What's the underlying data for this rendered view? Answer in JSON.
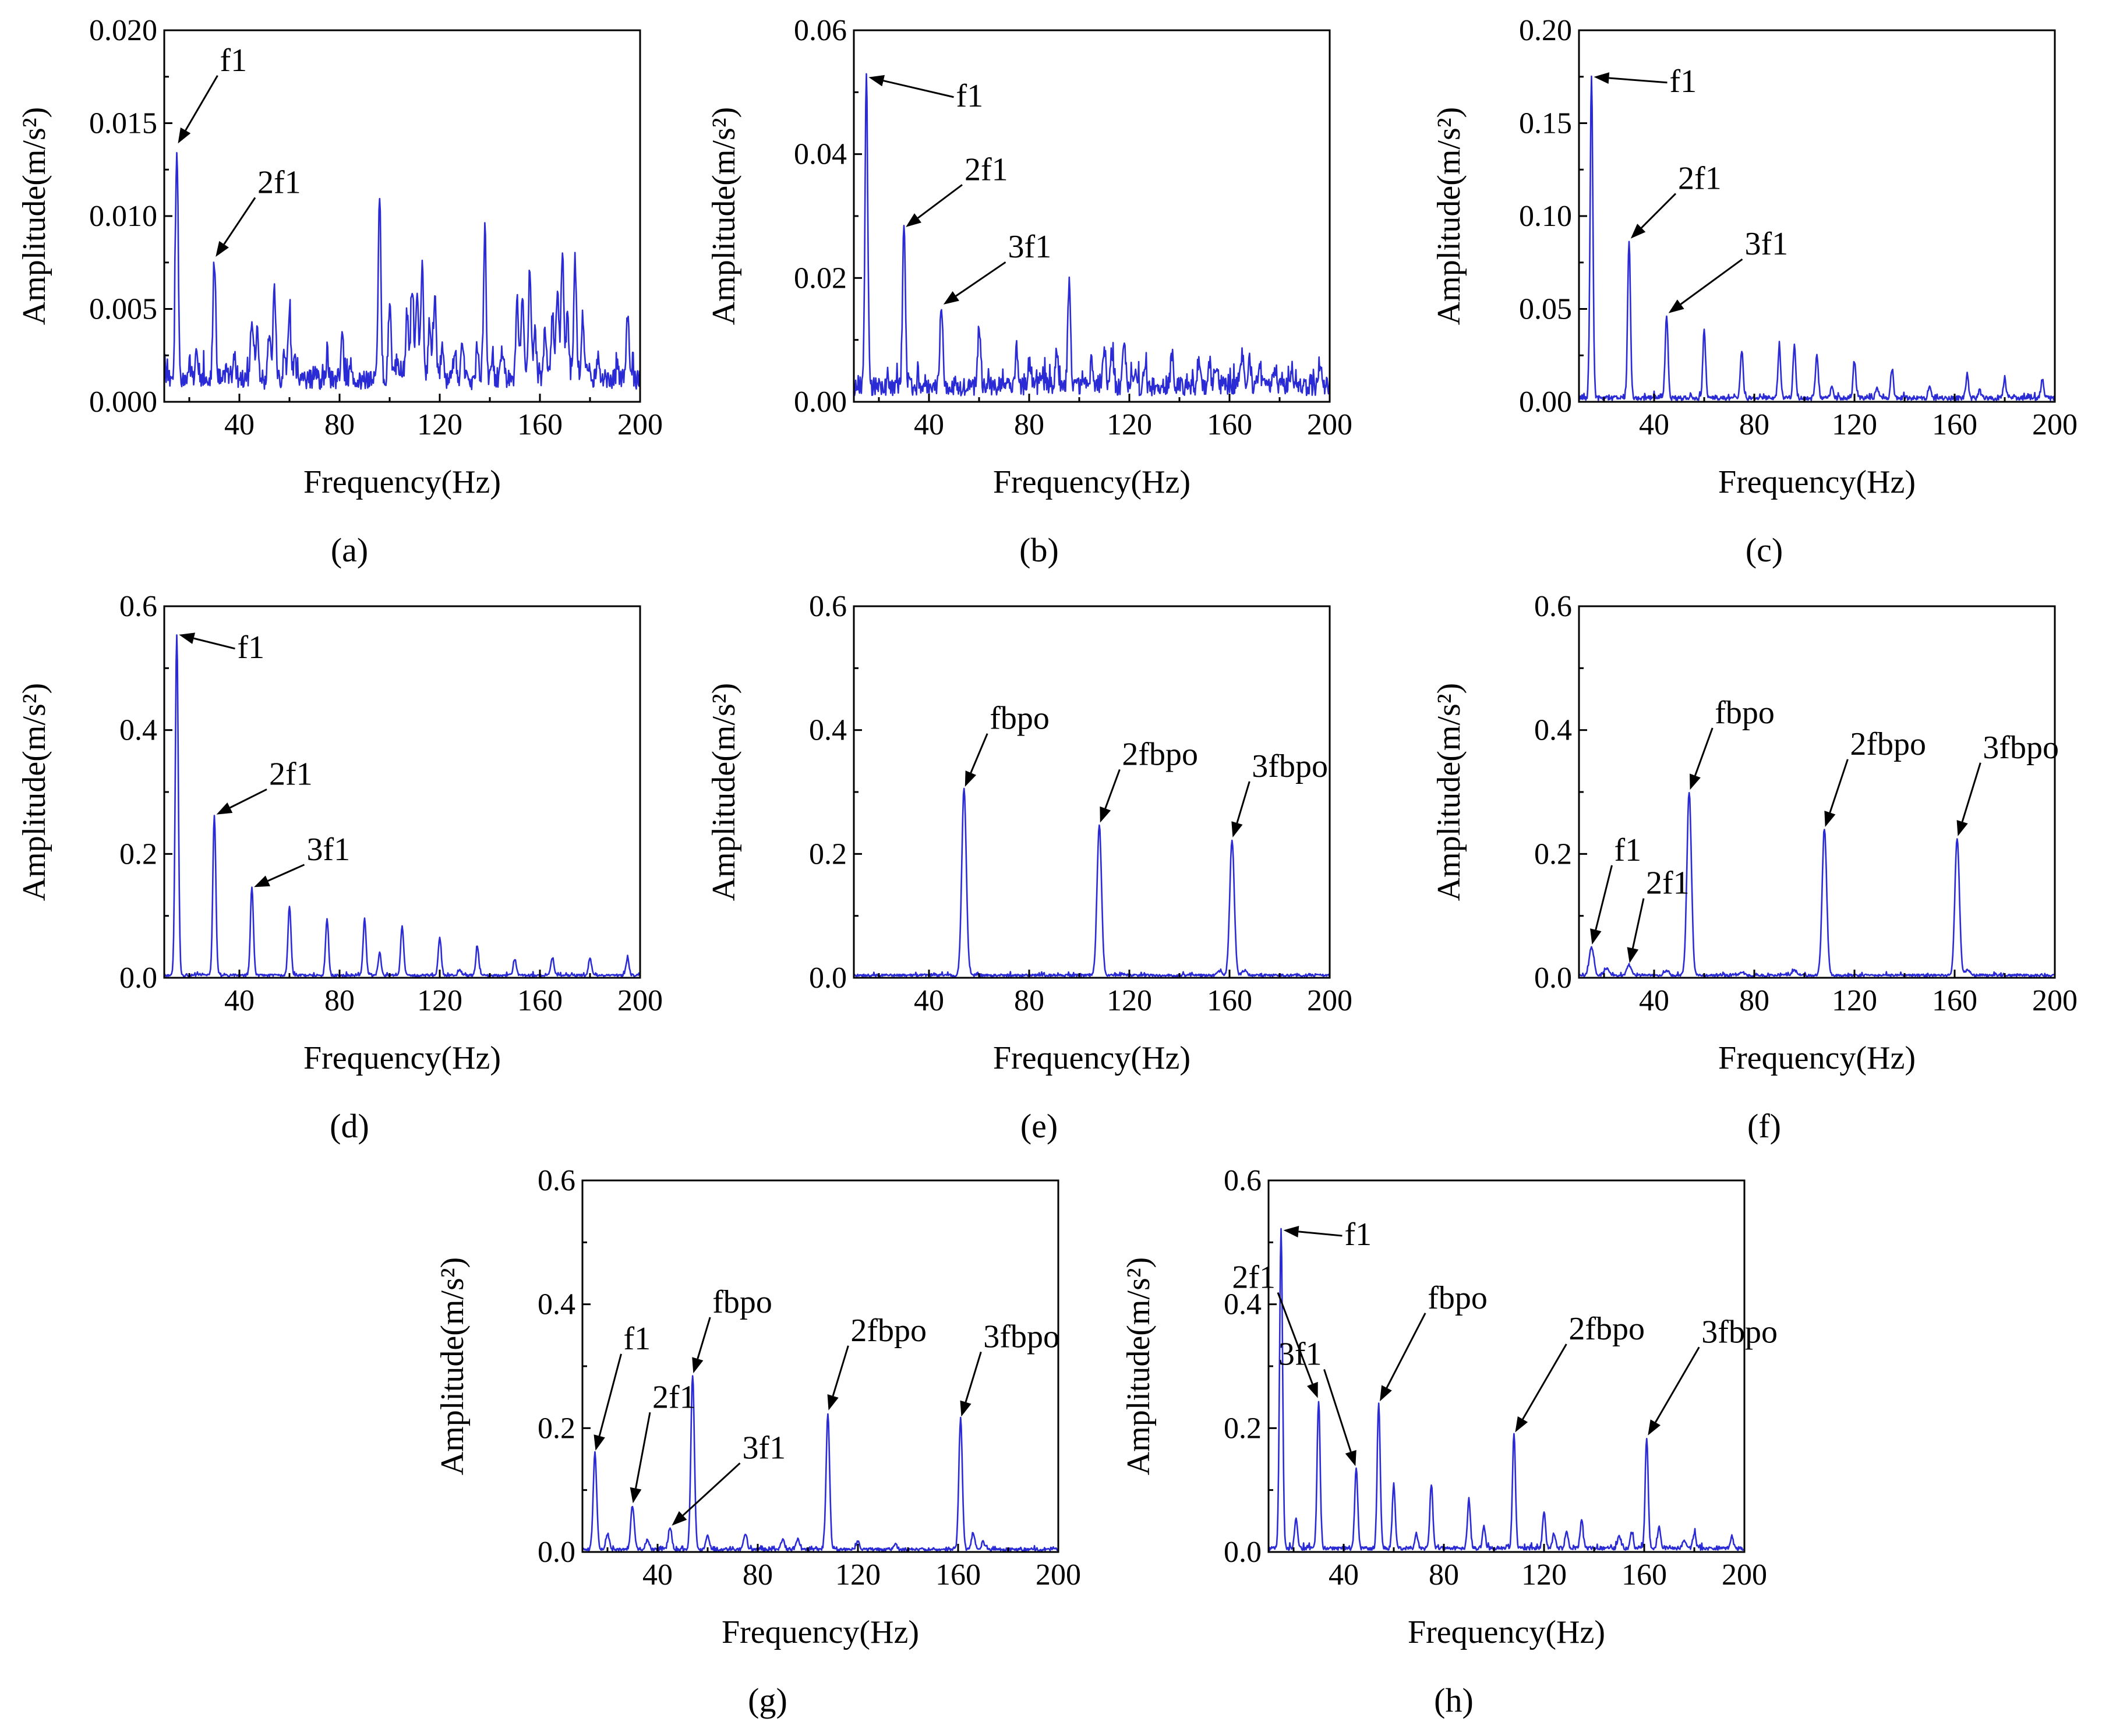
{
  "figure": {
    "panels": [
      {
        "caption": "(a)"
      },
      {
        "caption": "(b)"
      },
      {
        "caption": "(c)"
      },
      {
        "caption": "(d)"
      },
      {
        "caption": "(e)"
      },
      {
        "caption": "(f)"
      },
      {
        "caption": "(g)"
      },
      {
        "caption": "(h)"
      }
    ]
  },
  "colors": {
    "series": "#2b2bd6",
    "axis": "#000000"
  },
  "chart_data": [
    {
      "id": "a",
      "type": "line",
      "caption": "(a)",
      "xlabel": "Frequency(Hz)",
      "ylabel": "Amplitude(m/s²)",
      "xlim": [
        10,
        200
      ],
      "ylim": [
        0,
        0.02
      ],
      "xticks": [
        40,
        80,
        120,
        160,
        200
      ],
      "yticks": [
        0.0,
        0.005,
        0.01,
        0.015,
        0.02
      ],
      "ytick_labels": [
        "0.000",
        "0.005",
        "0.010",
        "0.015",
        "0.020"
      ],
      "baseline": 0.0012,
      "noise": 0.0009,
      "peak_width": 0.55,
      "peaks": [
        [
          15,
          0.0138
        ],
        [
          20,
          0.0021
        ],
        [
          23,
          0.0025
        ],
        [
          30,
          0.0077
        ],
        [
          35,
          0.002
        ],
        [
          38,
          0.0024
        ],
        [
          45,
          0.0044
        ],
        [
          47,
          0.0038
        ],
        [
          52,
          0.004
        ],
        [
          54,
          0.006
        ],
        [
          58,
          0.0024
        ],
        [
          60,
          0.0045
        ],
        [
          62,
          0.0022
        ],
        [
          70,
          0.0015
        ],
        [
          75,
          0.0022
        ],
        [
          81,
          0.0033
        ],
        [
          96,
          0.0109
        ],
        [
          100,
          0.0051
        ],
        [
          103,
          0.0024
        ],
        [
          107,
          0.0049
        ],
        [
          109,
          0.0058
        ],
        [
          111,
          0.0058
        ],
        [
          113,
          0.0073
        ],
        [
          116,
          0.0044
        ],
        [
          118,
          0.0056
        ],
        [
          121,
          0.0027
        ],
        [
          126,
          0.0029
        ],
        [
          129,
          0.0033
        ],
        [
          135,
          0.0028
        ],
        [
          138,
          0.0089
        ],
        [
          141,
          0.0022
        ],
        [
          145,
          0.0027
        ],
        [
          151,
          0.0053
        ],
        [
          153,
          0.0056
        ],
        [
          156,
          0.007
        ],
        [
          158,
          0.0038
        ],
        [
          162,
          0.0038
        ],
        [
          165,
          0.0047
        ],
        [
          167,
          0.0062
        ],
        [
          169,
          0.0083
        ],
        [
          171,
          0.0048
        ],
        [
          174,
          0.0075
        ],
        [
          177,
          0.0044
        ],
        [
          179,
          0.0021
        ],
        [
          183,
          0.0025
        ],
        [
          186,
          0.0015
        ],
        [
          191,
          0.0018
        ],
        [
          195,
          0.0045
        ]
      ],
      "annotations": [
        {
          "text": "f1",
          "x": 15,
          "y": 0.0138
        },
        {
          "text": "2f1",
          "x": 30,
          "y": 0.0077
        }
      ]
    },
    {
      "id": "b",
      "type": "line",
      "caption": "(b)",
      "xlabel": "Frequency(Hz)",
      "ylabel": "Amplitude(m/s²)",
      "xlim": [
        10,
        200
      ],
      "ylim": [
        0,
        0.06
      ],
      "xticks": [
        40,
        80,
        120,
        160,
        200
      ],
      "yticks": [
        0.0,
        0.02,
        0.04,
        0.06
      ],
      "ytick_labels": [
        "0.00",
        "0.02",
        "0.04",
        "0.06"
      ],
      "baseline": 0.0025,
      "noise": 0.0025,
      "peak_width": 0.55,
      "peaks": [
        [
          15,
          0.0525
        ],
        [
          30,
          0.028
        ],
        [
          45,
          0.0155
        ],
        [
          60,
          0.012
        ],
        [
          75,
          0.009
        ],
        [
          80,
          0.006
        ],
        [
          85,
          0.005
        ],
        [
          91,
          0.008
        ],
        [
          96,
          0.0198
        ],
        [
          105,
          0.007
        ],
        [
          110,
          0.009
        ],
        [
          113,
          0.008
        ],
        [
          118,
          0.01
        ],
        [
          122,
          0.005
        ],
        [
          126,
          0.0055
        ],
        [
          137,
          0.008
        ],
        [
          148,
          0.007
        ],
        [
          152,
          0.0065
        ],
        [
          155,
          0.005
        ],
        [
          165,
          0.008
        ],
        [
          168,
          0.007
        ],
        [
          172,
          0.006
        ],
        [
          178,
          0.005
        ],
        [
          184,
          0.004
        ],
        [
          196,
          0.0065
        ]
      ],
      "annotations": [
        {
          "text": "f1",
          "x": 15,
          "y": 0.0525
        },
        {
          "text": "2f1",
          "x": 30,
          "y": 0.028
        },
        {
          "text": "3f1",
          "x": 45,
          "y": 0.0155
        }
      ]
    },
    {
      "id": "c",
      "type": "line",
      "caption": "(c)",
      "xlabel": "Frequency(Hz)",
      "ylabel": "Amplitude(m/s²)",
      "xlim": [
        10,
        200
      ],
      "ylim": [
        0,
        0.2
      ],
      "xticks": [
        40,
        80,
        120,
        160,
        200
      ],
      "yticks": [
        0.0,
        0.05,
        0.1,
        0.15,
        0.2
      ],
      "ytick_labels": [
        "0.00",
        "0.05",
        "0.10",
        "0.15",
        "0.20"
      ],
      "baseline": 0.002,
      "noise": 0.002,
      "peak_width": 0.55,
      "peaks": [
        [
          15,
          0.175
        ],
        [
          30,
          0.087
        ],
        [
          45,
          0.047
        ],
        [
          60,
          0.038
        ],
        [
          75,
          0.028
        ],
        [
          90,
          0.03
        ],
        [
          96,
          0.03
        ],
        [
          105,
          0.026
        ],
        [
          111,
          0.009
        ],
        [
          120,
          0.022
        ],
        [
          129,
          0.008
        ],
        [
          135,
          0.018
        ],
        [
          150,
          0.009
        ],
        [
          165,
          0.014
        ],
        [
          170,
          0.006
        ],
        [
          180,
          0.012
        ],
        [
          195,
          0.012
        ]
      ],
      "annotations": [
        {
          "text": "f1",
          "x": 15,
          "y": 0.175
        },
        {
          "text": "2f1",
          "x": 30,
          "y": 0.087
        },
        {
          "text": "3f1",
          "x": 45,
          "y": 0.047
        }
      ]
    },
    {
      "id": "d",
      "type": "line",
      "caption": "(d)",
      "xlabel": "Frequency(Hz)",
      "ylabel": "Amplitude(m/s²)",
      "xlim": [
        10,
        200
      ],
      "ylim": [
        0,
        0.6
      ],
      "xticks": [
        40,
        80,
        120,
        160,
        200
      ],
      "yticks": [
        0.0,
        0.2,
        0.4,
        0.6
      ],
      "ytick_labels": [
        "0.0",
        "0.2",
        "0.4",
        "0.6"
      ],
      "baseline": 0.004,
      "noise": 0.003,
      "peak_width": 0.6,
      "peaks": [
        [
          15,
          0.555
        ],
        [
          30,
          0.262
        ],
        [
          45,
          0.145
        ],
        [
          60,
          0.115
        ],
        [
          75,
          0.095
        ],
        [
          90,
          0.095
        ],
        [
          96,
          0.04
        ],
        [
          105,
          0.083
        ],
        [
          120,
          0.065
        ],
        [
          128,
          0.012
        ],
        [
          135,
          0.05
        ],
        [
          150,
          0.03
        ],
        [
          165,
          0.033
        ],
        [
          180,
          0.032
        ],
        [
          195,
          0.032
        ]
      ],
      "annotations": [
        {
          "text": "f1",
          "x": 15,
          "y": 0.555
        },
        {
          "text": "2f1",
          "x": 30,
          "y": 0.262
        },
        {
          "text": "3f1",
          "x": 45,
          "y": 0.145
        }
      ]
    },
    {
      "id": "e",
      "type": "line",
      "caption": "(e)",
      "xlabel": "Frequency(Hz)",
      "ylabel": "Amplitude(m/s²)",
      "xlim": [
        10,
        200
      ],
      "ylim": [
        0,
        0.6
      ],
      "xticks": [
        40,
        80,
        120,
        160,
        200
      ],
      "yticks": [
        0.0,
        0.2,
        0.4,
        0.6
      ],
      "ytick_labels": [
        "0.0",
        "0.2",
        "0.4",
        "0.6"
      ],
      "baseline": 0.004,
      "noise": 0.003,
      "peak_width": 0.9,
      "peaks": [
        [
          54,
          0.305
        ],
        [
          108,
          0.247
        ],
        [
          161,
          0.223
        ],
        [
          156,
          0.01
        ],
        [
          166,
          0.012
        ]
      ],
      "annotations": [
        {
          "text": "fbpo",
          "x": 54,
          "y": 0.305
        },
        {
          "text": "2fbpo",
          "x": 108,
          "y": 0.247
        },
        {
          "text": "3fbpo",
          "x": 161,
          "y": 0.223
        }
      ]
    },
    {
      "id": "f",
      "type": "line",
      "caption": "(f)",
      "xlabel": "Frequency(Hz)",
      "ylabel": "Amplitude(m/s²)",
      "xlim": [
        10,
        200
      ],
      "ylim": [
        0,
        0.6
      ],
      "xticks": [
        40,
        80,
        120,
        160,
        200
      ],
      "yticks": [
        0.0,
        0.2,
        0.4,
        0.6
      ],
      "ytick_labels": [
        "0.0",
        "0.2",
        "0.4",
        "0.6"
      ],
      "baseline": 0.004,
      "noise": 0.003,
      "peak_width": 0.9,
      "peaks": [
        [
          15,
          0.05
        ],
        [
          21,
          0.015
        ],
        [
          30,
          0.02
        ],
        [
          45,
          0.012
        ],
        [
          54,
          0.3
        ],
        [
          75,
          0.01
        ],
        [
          96,
          0.012
        ],
        [
          108,
          0.24
        ],
        [
          161,
          0.225
        ],
        [
          165,
          0.012
        ]
      ],
      "annotations": [
        {
          "text": "f1",
          "x": 15,
          "y": 0.05
        },
        {
          "text": "2f1",
          "x": 30,
          "y": 0.02
        },
        {
          "text": "fbpo",
          "x": 54,
          "y": 0.3
        },
        {
          "text": "2fbpo",
          "x": 108,
          "y": 0.24
        },
        {
          "text": "3fbpo",
          "x": 161,
          "y": 0.225
        }
      ]
    },
    {
      "id": "g",
      "type": "line",
      "caption": "(g)",
      "xlabel": "Frequency(Hz)",
      "ylabel": "Amplitude(m/s²)",
      "xlim": [
        10,
        200
      ],
      "ylim": [
        0,
        0.6
      ],
      "xticks": [
        40,
        80,
        120,
        160,
        200
      ],
      "yticks": [
        0.0,
        0.2,
        0.4,
        0.6
      ],
      "ytick_labels": [
        "0.0",
        "0.2",
        "0.4",
        "0.6"
      ],
      "baseline": 0.004,
      "noise": 0.004,
      "peak_width": 0.7,
      "peaks": [
        [
          15,
          0.16
        ],
        [
          20,
          0.03
        ],
        [
          30,
          0.075
        ],
        [
          36,
          0.02
        ],
        [
          45,
          0.04
        ],
        [
          54,
          0.285
        ],
        [
          60,
          0.025
        ],
        [
          75,
          0.03
        ],
        [
          90,
          0.02
        ],
        [
          96,
          0.02
        ],
        [
          108,
          0.225
        ],
        [
          120,
          0.018
        ],
        [
          135,
          0.012
        ],
        [
          161,
          0.215
        ],
        [
          166,
          0.03
        ],
        [
          170,
          0.015
        ]
      ],
      "annotations": [
        {
          "text": "f1",
          "x": 15,
          "y": 0.16
        },
        {
          "text": "2f1",
          "x": 30,
          "y": 0.075
        },
        {
          "text": "3f1",
          "x": 45,
          "y": 0.04
        },
        {
          "text": "fbpo",
          "x": 54,
          "y": 0.285
        },
        {
          "text": "2fbpo",
          "x": 108,
          "y": 0.225
        },
        {
          "text": "3fbpo",
          "x": 161,
          "y": 0.215
        }
      ]
    },
    {
      "id": "h",
      "type": "line",
      "caption": "(h)",
      "xlabel": "Frequency(Hz)",
      "ylabel": "Amplitude(m/s²)",
      "xlim": [
        10,
        200
      ],
      "ylim": [
        0,
        0.6
      ],
      "xticks": [
        40,
        80,
        120,
        160,
        200
      ],
      "yticks": [
        0.0,
        0.2,
        0.4,
        0.6
      ],
      "ytick_labels": [
        "0.0",
        "0.2",
        "0.4",
        "0.6"
      ],
      "baseline": 0.006,
      "noise": 0.005,
      "peak_width": 0.6,
      "peaks": [
        [
          15,
          0.52
        ],
        [
          21,
          0.055
        ],
        [
          30,
          0.245
        ],
        [
          45,
          0.135
        ],
        [
          54,
          0.24
        ],
        [
          60,
          0.11
        ],
        [
          69,
          0.03
        ],
        [
          75,
          0.11
        ],
        [
          90,
          0.085
        ],
        [
          96,
          0.04
        ],
        [
          108,
          0.19
        ],
        [
          120,
          0.065
        ],
        [
          124,
          0.03
        ],
        [
          129,
          0.035
        ],
        [
          135,
          0.05
        ],
        [
          150,
          0.025
        ],
        [
          155,
          0.03
        ],
        [
          161,
          0.185
        ],
        [
          166,
          0.04
        ],
        [
          176,
          0.02
        ],
        [
          180,
          0.03
        ],
        [
          195,
          0.025
        ]
      ],
      "annotations": [
        {
          "text": "f1",
          "x": 15,
          "y": 0.52
        },
        {
          "text": "2f1",
          "x": 30,
          "y": 0.245
        },
        {
          "text": "3f1",
          "x": 45,
          "y": 0.135
        },
        {
          "text": "fbpo",
          "x": 54,
          "y": 0.24
        },
        {
          "text": "2fbpo",
          "x": 108,
          "y": 0.19
        },
        {
          "text": "3fbpo",
          "x": 161,
          "y": 0.185
        }
      ]
    }
  ]
}
